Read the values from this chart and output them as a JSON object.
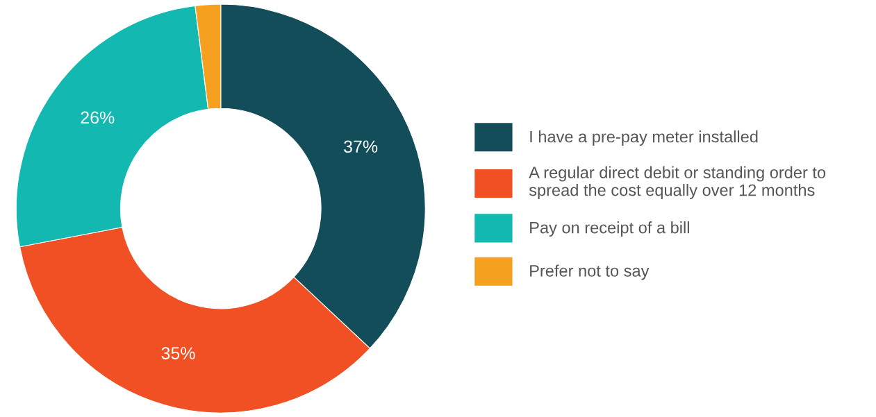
{
  "chart_data": {
    "type": "donut",
    "categories": [
      "I have a pre-pay meter installed",
      "A regular direct debit or standing order to spread the cost equally over 12 months",
      "Pay on receipt of a bill",
      "Prefer not to say"
    ],
    "values": [
      37,
      35,
      26,
      2
    ],
    "colors": [
      "#144d5a",
      "#f05023",
      "#13b9b0",
      "#f6a01f"
    ],
    "value_labels": [
      "37%",
      "35%",
      "26%",
      null
    ],
    "legend": "right"
  }
}
